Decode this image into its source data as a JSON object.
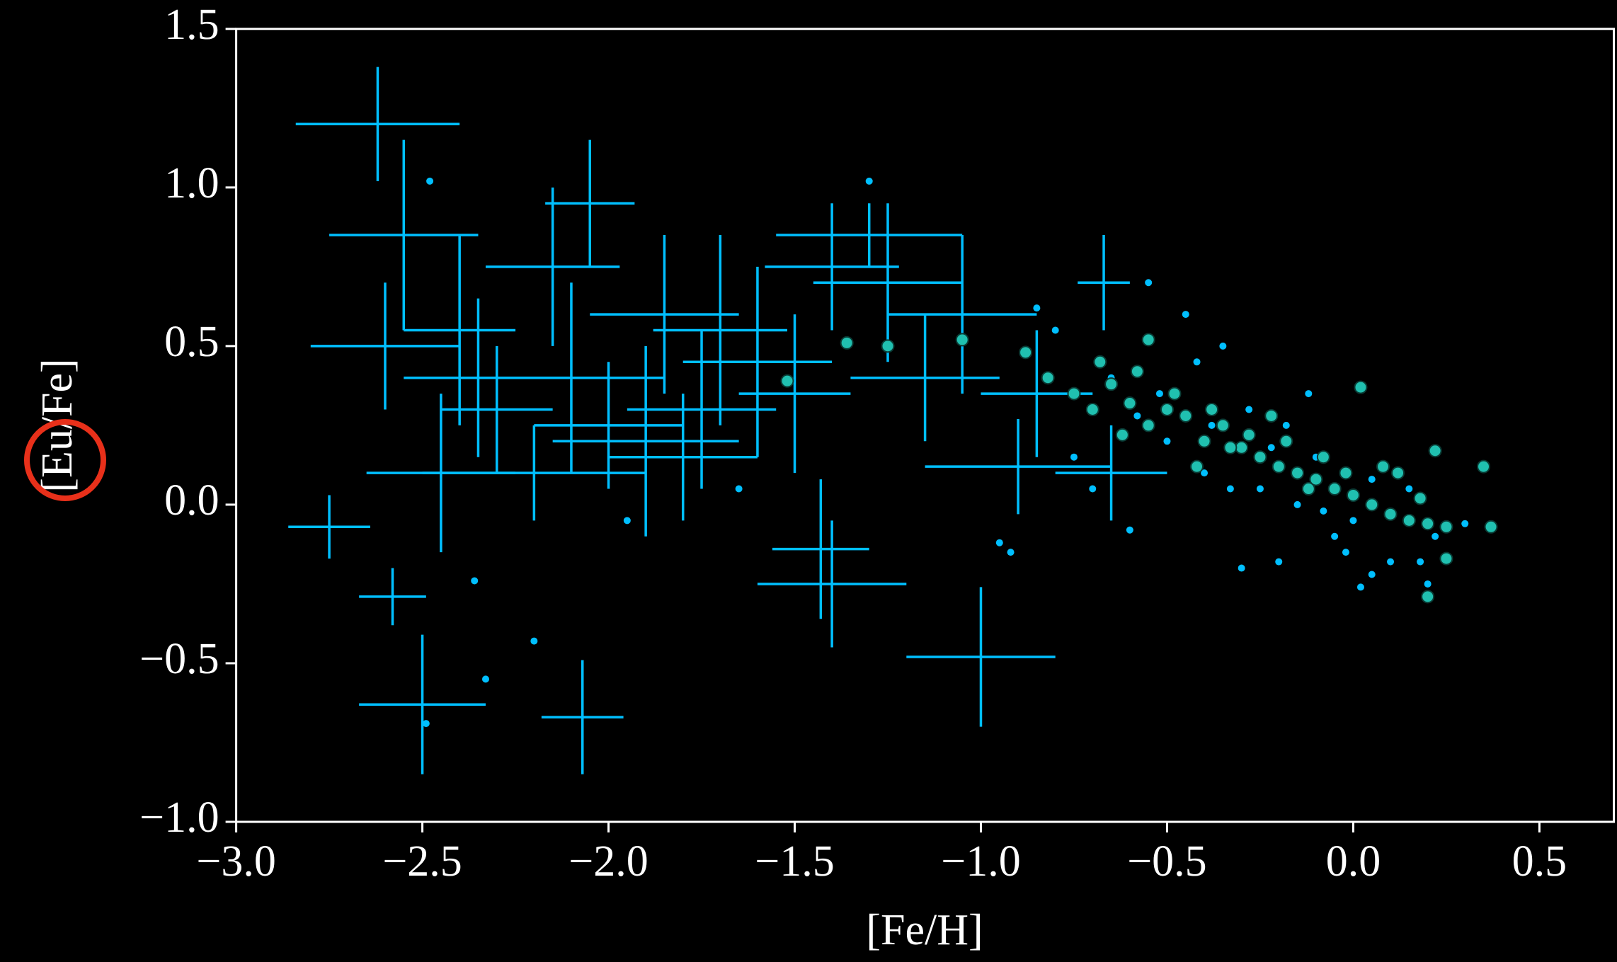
{
  "chart_data": {
    "type": "scatter",
    "xlabel": "[Fe/H]",
    "ylabel": "[Eu/Fe]",
    "xlim": [
      -3.0,
      0.7
    ],
    "ylim": [
      -1.0,
      1.5
    ],
    "xticks": [
      {
        "value": -3.0,
        "label": "−3.0"
      },
      {
        "value": -2.5,
        "label": "−2.5"
      },
      {
        "value": -2.0,
        "label": "−2.0"
      },
      {
        "value": -1.5,
        "label": "−1.5"
      },
      {
        "value": -1.0,
        "label": "−1.0"
      },
      {
        "value": -0.5,
        "label": "−0.5"
      },
      {
        "value": 0.0,
        "label": "0.0"
      },
      0.5
    ],
    "yticks": [
      {
        "value": -1.0,
        "label": "−1.0"
      },
      {
        "value": -0.5,
        "label": "−0.5"
      },
      {
        "value": 0.0,
        "label": "0.0"
      },
      0.5,
      {
        "value": 1.0,
        "label": "1.0"
      },
      1.5
    ],
    "grid": false,
    "series": [
      {
        "marker": "errorbar",
        "color": "#00bfff",
        "x": [
          -2.62,
          -2.75,
          -2.58,
          -2.5,
          -2.07,
          -1.4,
          -1.43,
          -1.0,
          -2.05,
          -1.3,
          -2.55,
          -2.6,
          -2.45,
          -2.3,
          -2.1,
          -1.9,
          -1.75,
          -1.6,
          -1.4,
          -1.25,
          -1.05,
          -0.9,
          -0.67,
          -0.65,
          -2.2,
          -2.4,
          -1.85,
          -2.0,
          -1.8,
          -1.5,
          -2.35,
          -1.15,
          -0.85,
          -1.7,
          -2.15
        ],
        "values": [
          1.2,
          -0.07,
          -0.29,
          -0.63,
          -0.67,
          -0.25,
          -0.14,
          -0.48,
          0.95,
          0.85,
          0.85,
          0.5,
          0.1,
          0.3,
          0.4,
          0.2,
          0.3,
          0.45,
          0.75,
          0.7,
          0.6,
          0.12,
          0.7,
          0.1,
          0.1,
          0.55,
          0.6,
          0.25,
          0.15,
          0.35,
          0.4,
          0.4,
          0.35,
          0.55,
          0.75
        ],
        "xerr": [
          0.22,
          0.11,
          0.09,
          0.17,
          0.11,
          0.2,
          0.13,
          0.2,
          0.12,
          0.25,
          0.2,
          0.2,
          0.2,
          0.15,
          0.25,
          0.25,
          0.2,
          0.2,
          0.18,
          0.2,
          0.2,
          0.25,
          0.07,
          0.15,
          0.3,
          0.15,
          0.2,
          0.2,
          0.2,
          0.15,
          0.2,
          0.2,
          0.15,
          0.18,
          0.18
        ],
        "yerr": [
          0.18,
          0.1,
          0.09,
          0.22,
          0.18,
          0.2,
          0.22,
          0.22,
          0.2,
          0.1,
          0.3,
          0.2,
          0.25,
          0.2,
          0.3,
          0.3,
          0.25,
          0.3,
          0.2,
          0.25,
          0.25,
          0.15,
          0.15,
          0.15,
          0.15,
          0.3,
          0.25,
          0.2,
          0.2,
          0.25,
          0.25,
          0.2,
          0.2,
          0.3,
          0.25
        ]
      },
      {
        "marker": "dot",
        "color": "#00bfff",
        "x": [
          -2.48,
          -2.2,
          -2.33,
          -2.49,
          -1.3,
          -0.92,
          -0.95,
          -0.8,
          -0.65,
          -0.55,
          -0.5,
          -0.45,
          -0.4,
          -0.35,
          -0.3,
          -0.25,
          -0.2,
          -0.15,
          -0.1,
          -0.05,
          0.0,
          0.05,
          0.1,
          0.15,
          0.2,
          -0.6,
          -0.52,
          -0.42,
          -0.28,
          -0.18,
          -0.08,
          0.02,
          0.12,
          0.22,
          -0.7,
          -0.38,
          -0.22,
          -0.12,
          0.05,
          0.18,
          0.3,
          -0.75,
          -0.58,
          -0.33,
          -0.02,
          0.08,
          -1.65,
          -1.95,
          -2.36,
          -0.85
        ],
        "values": [
          1.02,
          -0.43,
          -0.55,
          -0.69,
          1.02,
          -0.15,
          -0.12,
          0.55,
          0.4,
          0.7,
          0.2,
          0.6,
          0.1,
          0.5,
          -0.2,
          0.05,
          -0.18,
          0.0,
          0.15,
          -0.1,
          -0.05,
          -0.22,
          -0.18,
          0.05,
          -0.25,
          -0.08,
          0.35,
          0.45,
          0.3,
          0.25,
          -0.02,
          -0.26,
          0.1,
          -0.1,
          0.05,
          0.25,
          0.18,
          0.35,
          0.08,
          -0.18,
          -0.06,
          0.15,
          0.28,
          0.05,
          -0.15,
          0.12,
          0.05,
          -0.05,
          -0.24,
          0.62
        ]
      },
      {
        "marker": "circle",
        "color": "#20c0b0",
        "x": [
          -1.52,
          -1.36,
          -1.25,
          -1.05,
          -0.88,
          -0.82,
          -0.75,
          -0.7,
          -0.65,
          -0.6,
          -0.55,
          -0.5,
          -0.45,
          -0.4,
          -0.35,
          -0.3,
          -0.25,
          -0.2,
          -0.15,
          -0.1,
          -0.05,
          0.0,
          0.05,
          0.1,
          0.15,
          0.2,
          0.25,
          0.35,
          0.37,
          0.2,
          -0.68,
          -0.58,
          -0.48,
          -0.38,
          -0.28,
          -0.18,
          -0.08,
          0.02,
          0.12,
          0.22,
          -0.62,
          -0.42,
          -0.22,
          -0.02,
          0.18,
          -0.55,
          -0.33,
          -0.12,
          0.08,
          0.25
        ],
        "values": [
          0.39,
          0.51,
          0.5,
          0.52,
          0.48,
          0.4,
          0.35,
          0.3,
          0.38,
          0.32,
          0.25,
          0.3,
          0.28,
          0.2,
          0.25,
          0.18,
          0.15,
          0.12,
          0.1,
          0.08,
          0.05,
          0.03,
          0.0,
          -0.03,
          -0.05,
          -0.06,
          -0.07,
          0.12,
          -0.07,
          -0.29,
          0.45,
          0.42,
          0.35,
          0.3,
          0.22,
          0.2,
          0.15,
          0.37,
          0.1,
          0.17,
          0.22,
          0.12,
          0.28,
          0.1,
          0.02,
          0.52,
          0.18,
          0.05,
          0.12,
          -0.17
        ]
      }
    ]
  }
}
